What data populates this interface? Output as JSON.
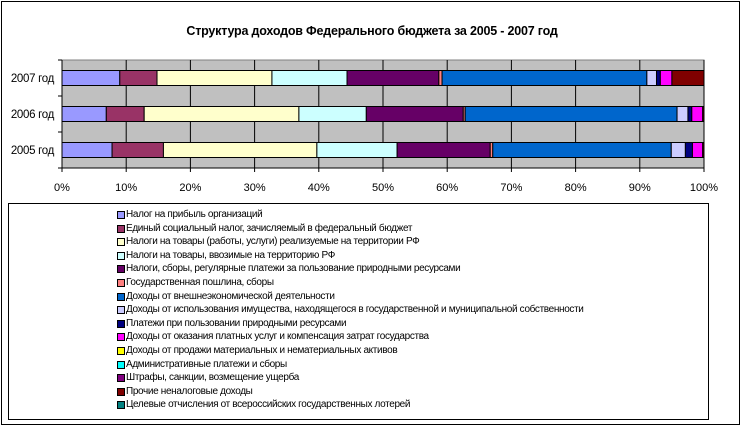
{
  "chart_data": {
    "type": "bar",
    "orientation": "horizontal",
    "stacked": "percent",
    "title": "Структура доходов Федерального бюджета за 2005 - 2007 год",
    "categories": [
      "2007 год",
      "2006 год",
      "2005 год"
    ],
    "xlim": [
      0,
      100
    ],
    "xticks": [
      "0%",
      "10%",
      "20%",
      "30%",
      "40%",
      "50%",
      "60%",
      "70%",
      "80%",
      "90%",
      "100%"
    ],
    "grid": true,
    "legend_position": "bottom",
    "series": [
      {
        "name": "Налог на прибыль организаций",
        "color": "#9999FF",
        "values": [
          9.0,
          6.9,
          7.8
        ]
      },
      {
        "name": "Единый социальный налог, зачисляемый в федеральный бюджет",
        "color": "#993366",
        "values": [
          5.8,
          5.9,
          8.0
        ]
      },
      {
        "name": "Налоги на товары (работы, услуги) реализуемые на территории РФ",
        "color": "#FFFFCC",
        "values": [
          17.9,
          24.1,
          23.9
        ]
      },
      {
        "name": "Налоги на товары, ввозимые на территорию РФ",
        "color": "#CCFFFF",
        "values": [
          11.7,
          10.5,
          12.5
        ]
      },
      {
        "name": "Налоги, сборы, регулярные платежи за пользование природными ресурсами",
        "color": "#660066",
        "values": [
          14.3,
          15.1,
          14.5
        ]
      },
      {
        "name": "Государственная пошлина, сборы",
        "color": "#FF8080",
        "values": [
          0.5,
          0.3,
          0.4
        ]
      },
      {
        "name": "Доходы от внешнеэкономической деятельности",
        "color": "#0066CC",
        "values": [
          31.9,
          33.0,
          27.8
        ]
      },
      {
        "name": "Доходы от использования имущества, находящегося в государственной и муниципальной собственности",
        "color": "#CCCCFF",
        "values": [
          1.5,
          1.7,
          2.2
        ]
      },
      {
        "name": "Платежи при пользовании природными ресурсами",
        "color": "#000080",
        "values": [
          0.6,
          0.6,
          1.1
        ]
      },
      {
        "name": "Доходы от оказания платных услуг и компенсация затрат государства",
        "color": "#FF00FF",
        "values": [
          1.8,
          1.7,
          1.6
        ]
      },
      {
        "name": "Доходы от продажи материальных и нематериальных активов",
        "color": "#FFFF00",
        "values": [
          0,
          0,
          0
        ]
      },
      {
        "name": "Административные платежи и сборы",
        "color": "#00FFFF",
        "values": [
          0,
          0,
          0
        ]
      },
      {
        "name": "Штрафы, санкции, возмещение ущерба",
        "color": "#800080",
        "values": [
          0,
          0,
          0
        ]
      },
      {
        "name": "Прочие неналоговые доходы",
        "color": "#800000",
        "values": [
          5.0,
          0.2,
          0.2
        ]
      },
      {
        "name": "Целевые отчисления от всероссийских государственных лотерей",
        "color": "#008080",
        "values": [
          0,
          0,
          0
        ]
      }
    ]
  }
}
